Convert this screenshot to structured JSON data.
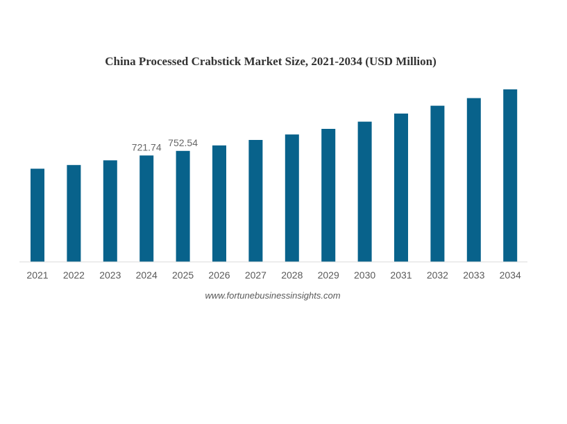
{
  "chart_data": {
    "type": "bar",
    "title": "China Processed Crabstick Market Size, 2021-2034 (USD Million)",
    "xlabel": "",
    "ylabel": "",
    "categories": [
      "2021",
      "2022",
      "2023",
      "2024",
      "2025",
      "2026",
      "2027",
      "2028",
      "2029",
      "2030",
      "2031",
      "2032",
      "2033",
      "2034"
    ],
    "series": [
      {
        "values": [
          632,
          657,
          689,
          721.74,
          752.54,
          790,
          827,
          864,
          902,
          951,
          1006,
          1059,
          1111,
          1170
        ],
        "color": "#08628b"
      }
    ],
    "data_labels": [
      {
        "index": 3,
        "text": "721.74"
      },
      {
        "index": 4,
        "text": "752.54"
      }
    ],
    "ylim": [
      0,
      1170
    ],
    "grid": false,
    "legend": "none",
    "source": "www.fortunebusinessinsights.com",
    "colors": {
      "bar": "#08628b",
      "title": "#333333",
      "axis_text": "#595959",
      "baseline": "#d9d9d9"
    }
  }
}
